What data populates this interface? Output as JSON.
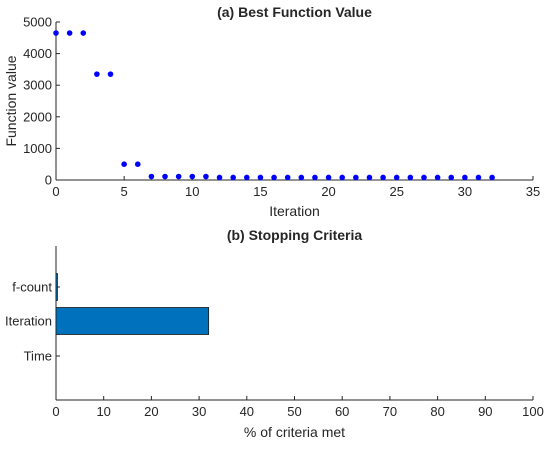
{
  "chart_data": [
    {
      "type": "scatter",
      "title": "(a) Best Function Value",
      "xlabel": "Iteration",
      "ylabel": "Function value",
      "xlim": [
        0,
        35
      ],
      "ylim": [
        0,
        5000
      ],
      "xticks": [
        0,
        5,
        10,
        15,
        20,
        25,
        30,
        35
      ],
      "yticks": [
        0,
        1000,
        2000,
        3000,
        4000,
        5000
      ],
      "grid": false,
      "marker_color": "#0000ff",
      "series": [
        {
          "x": [
            0,
            1,
            2,
            3,
            4,
            5,
            6,
            7,
            8,
            9,
            10,
            11,
            12,
            13,
            14,
            15,
            16,
            17,
            18,
            19,
            20,
            21,
            22,
            23,
            24,
            25,
            26,
            27,
            28,
            29,
            30,
            31,
            32
          ],
          "y": [
            4650,
            4650,
            4650,
            3350,
            3350,
            500,
            500,
            110,
            110,
            110,
            110,
            110,
            80,
            80,
            80,
            80,
            80,
            80,
            80,
            80,
            80,
            80,
            80,
            80,
            80,
            80,
            80,
            80,
            80,
            80,
            80,
            80,
            80
          ]
        }
      ]
    },
    {
      "type": "bar",
      "orientation": "horizontal",
      "title": "(b) Stopping Criteria",
      "xlabel": "% of criteria met",
      "ylabel": "",
      "categories": [
        "f-count",
        "Iteration",
        "Time"
      ],
      "values": [
        0.3,
        32,
        0
      ],
      "xlim": [
        0,
        100
      ],
      "xticks": [
        0,
        10,
        20,
        30,
        40,
        50,
        60,
        70,
        80,
        90,
        100
      ],
      "grid": false,
      "bar_color": "#0072bd"
    }
  ]
}
